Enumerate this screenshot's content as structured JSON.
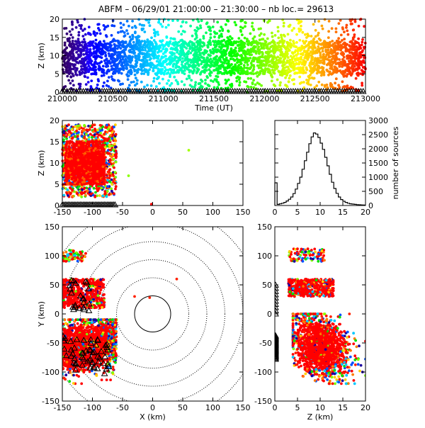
{
  "title": "ABFM – 06/29/01 21:00:00 – 21:30:00 – nb loc.=  29613",
  "chart_data": [
    {
      "id": "time-height",
      "type": "scatter",
      "xlabel": "Time (UT)",
      "ylabel": "Z (km)",
      "xlim": [
        210000,
        213000
      ],
      "ylim": [
        0,
        20
      ],
      "xticks": [
        "210000",
        "210500",
        "211000",
        "211500",
        "212000",
        "212500",
        "213000"
      ],
      "yticks": [
        "0",
        "5",
        "10",
        "15",
        "20"
      ],
      "color_encoding": "time",
      "core_z": [
        5,
        14
      ],
      "outlier_z": [
        0,
        20
      ],
      "station_markers_at_z": 0
    },
    {
      "id": "x-height",
      "type": "scatter",
      "xlabel": "",
      "ylabel": "Z (km)",
      "xlim": [
        -150,
        150
      ],
      "ylim": [
        0,
        20
      ],
      "xticks": [
        "-150",
        "-100",
        "-50",
        "0",
        "50",
        "100",
        "150"
      ],
      "yticks": [
        "0",
        "5",
        "10",
        "15",
        "20"
      ],
      "cluster_x": [
        -150,
        -60
      ],
      "cluster_z": [
        2,
        19
      ],
      "core_x": [
        -145,
        -80
      ],
      "core_z": [
        5,
        15
      ],
      "isolated_points": [
        {
          "x": -40,
          "z": 7
        },
        {
          "x": 60,
          "z": 13
        },
        {
          "x": -2,
          "z": 0.3
        }
      ],
      "station_markers_x": [
        -150,
        -60
      ]
    },
    {
      "id": "height-histogram",
      "type": "line",
      "xlabel": "",
      "ylabel": "number of sources",
      "xlim": [
        0,
        20
      ],
      "ylim": [
        0,
        3000
      ],
      "xticks": [
        "0",
        "5",
        "10",
        "15",
        "20"
      ],
      "yticks": [
        "0",
        "500",
        "1000",
        "1500",
        "2000",
        "2500",
        "3000"
      ],
      "x": [
        0.25,
        0.75,
        1.25,
        1.75,
        2.25,
        2.75,
        3.25,
        3.75,
        4.25,
        4.75,
        5.25,
        5.75,
        6.25,
        6.75,
        7.25,
        7.75,
        8.25,
        8.75,
        9.25,
        9.75,
        10.25,
        10.75,
        11.25,
        11.75,
        12.25,
        12.75,
        13.25,
        13.75,
        14.25,
        14.75,
        15.25,
        15.75,
        16.25,
        16.75,
        17.25,
        17.75,
        18.25,
        18.75,
        19.25,
        19.75
      ],
      "values": [
        800,
        40,
        60,
        80,
        110,
        160,
        220,
        300,
        420,
        580,
        780,
        1000,
        1280,
        1580,
        1880,
        2180,
        2420,
        2560,
        2520,
        2400,
        2200,
        1980,
        1700,
        1400,
        1100,
        820,
        600,
        430,
        300,
        210,
        150,
        110,
        80,
        60,
        50,
        40,
        30,
        25,
        20,
        15
      ]
    },
    {
      "id": "plan-view",
      "type": "scatter",
      "xlabel": "X (km)",
      "ylabel": "Y (km)",
      "xlim": [
        -150,
        150
      ],
      "ylim": [
        -150,
        150
      ],
      "xticks": [
        "-150",
        "-100",
        "-50",
        "0",
        "50",
        "100",
        "150"
      ],
      "yticks": [
        "-150",
        "-100",
        "-50",
        "0",
        "50",
        "100",
        "150"
      ],
      "range_rings_km": [
        30,
        60,
        90,
        120,
        150,
        180
      ],
      "solid_ring_km": 30,
      "clusters": [
        {
          "x": [
            -150,
            -60
          ],
          "y": [
            -120,
            -10
          ]
        },
        {
          "x": [
            -150,
            -80
          ],
          "y": [
            10,
            60
          ]
        },
        {
          "x": [
            -150,
            -110
          ],
          "y": [
            90,
            110
          ]
        }
      ],
      "isolated_points": [
        {
          "x": -30,
          "y": 30
        },
        {
          "x": -5,
          "y": 28
        },
        {
          "x": 40,
          "y": 60
        }
      ]
    },
    {
      "id": "z-y-view",
      "type": "scatter",
      "xlabel": "Z (km)",
      "ylabel": "",
      "xlim": [
        0,
        20
      ],
      "ylim": [
        -150,
        150
      ],
      "xticks": [
        "0",
        "5",
        "10",
        "15",
        "20"
      ],
      "yticks": [
        "-150",
        "-100",
        "-50",
        "0",
        "50",
        "100",
        "150"
      ],
      "clusters": [
        {
          "z": [
            4,
            20
          ],
          "y": [
            -120,
            0
          ]
        },
        {
          "z": [
            3,
            13
          ],
          "y": [
            30,
            60
          ]
        },
        {
          "z": [
            3,
            11
          ],
          "y": [
            90,
            112
          ]
        }
      ],
      "station_markers_z": 0
    }
  ]
}
